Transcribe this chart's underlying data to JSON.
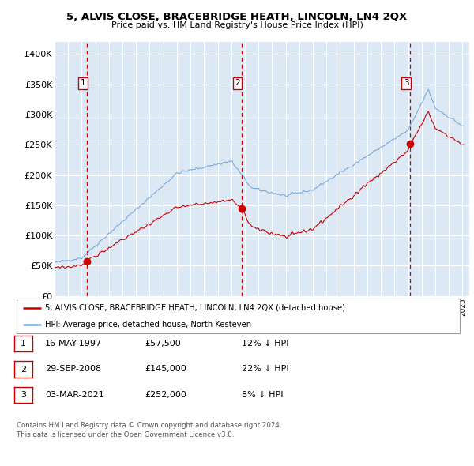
{
  "title": "5, ALVIS CLOSE, BRACEBRIDGE HEATH, LINCOLN, LN4 2QX",
  "subtitle": "Price paid vs. HM Land Registry's House Price Index (HPI)",
  "ylabel_ticks": [
    "£0",
    "£50K",
    "£100K",
    "£150K",
    "£200K",
    "£250K",
    "£300K",
    "£350K",
    "£400K"
  ],
  "ytick_values": [
    0,
    50000,
    100000,
    150000,
    200000,
    250000,
    300000,
    350000,
    400000
  ],
  "ylim": [
    0,
    420000
  ],
  "xlim_start": 1995.0,
  "xlim_end": 2025.5,
  "bg_color": "#dce9f5",
  "grid_color": "#ffffff",
  "sale_color": "#cc0000",
  "hpi_color": "#7aaadd",
  "sale_dates": [
    1997.37,
    2008.75,
    2021.17
  ],
  "sale_prices": [
    57500,
    145000,
    252000
  ],
  "sale_labels": [
    "1",
    "2",
    "3"
  ],
  "legend_sale_label": "5, ALVIS CLOSE, BRACEBRIDGE HEATH, LINCOLN, LN4 2QX (detached house)",
  "legend_hpi_label": "HPI: Average price, detached house, North Kesteven",
  "table_rows": [
    [
      "1",
      "16-MAY-1997",
      "£57,500",
      "12% ↓ HPI"
    ],
    [
      "2",
      "29-SEP-2008",
      "£145,000",
      "22% ↓ HPI"
    ],
    [
      "3",
      "03-MAR-2021",
      "£252,000",
      "8% ↓ HPI"
    ]
  ],
  "footnote1": "Contains HM Land Registry data © Crown copyright and database right 2024.",
  "footnote2": "This data is licensed under the Open Government Licence v3.0."
}
